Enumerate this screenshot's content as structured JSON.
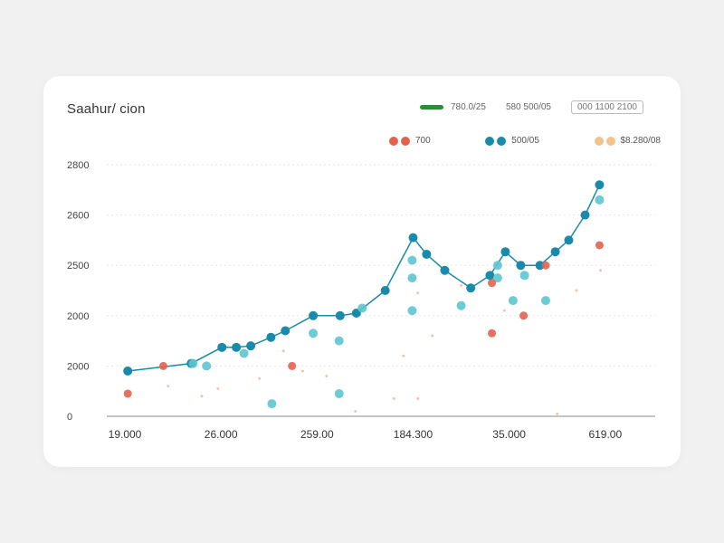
{
  "card": {
    "title": "Saahur/ cion",
    "top_legend": {
      "item1": "780.0/25",
      "item2": "580 500/05",
      "item3_box": "000 1100 2100"
    }
  },
  "colors": {
    "line": "#1a8aab",
    "teal": "#5cc5cf",
    "red": "#e3624f",
    "peach": "#f0c38e",
    "green": "#2f8a3a",
    "grid": "#e6e6e6",
    "axis": "#8a8a8a"
  },
  "chart_data": {
    "type": "scatter",
    "x_ticks": [
      {
        "value": 0,
        "label": "19.000"
      },
      {
        "value": 1,
        "label": "26.000"
      },
      {
        "value": 2,
        "label": "259.00"
      },
      {
        "value": 3,
        "label": "184.300"
      },
      {
        "value": 4,
        "label": "35.000"
      },
      {
        "value": 5,
        "label": "619.00"
      }
    ],
    "xlim": [
      0,
      5.52
    ],
    "y_ticks": [
      {
        "value": 0,
        "label": "0"
      },
      {
        "value": 1,
        "label": "2000"
      },
      {
        "value": 2,
        "label": "2000"
      },
      {
        "value": 3,
        "label": "2500"
      },
      {
        "value": 4,
        "label": "2600"
      },
      {
        "value": 5,
        "label": "2800"
      }
    ],
    "ylim": [
      0,
      5
    ],
    "grid": true,
    "legend_placement": "top-right",
    "series": [
      {
        "name": "780.0",
        "style": "line",
        "color_key": "line",
        "points": [
          [
            0.03,
            0.9
          ],
          [
            0.69,
            1.05
          ],
          [
            1.01,
            1.37
          ],
          [
            1.16,
            1.37
          ],
          [
            1.31,
            1.4
          ],
          [
            1.52,
            1.57
          ],
          [
            1.67,
            1.7
          ],
          [
            1.96,
            2.0
          ],
          [
            2.24,
            2.0
          ],
          [
            2.41,
            2.05
          ],
          [
            2.71,
            2.5
          ],
          [
            3.0,
            3.55
          ],
          [
            3.14,
            3.22
          ],
          [
            3.33,
            2.9
          ],
          [
            3.6,
            2.55
          ],
          [
            3.8,
            2.8
          ],
          [
            3.96,
            3.27
          ],
          [
            4.12,
            3.0
          ],
          [
            4.32,
            3.0
          ],
          [
            4.48,
            3.27
          ],
          [
            4.62,
            3.5
          ],
          [
            4.79,
            4.0
          ],
          [
            4.94,
            4.6
          ]
        ]
      },
      {
        "name": "500/05",
        "style": "points",
        "color_key": "teal",
        "points": [
          [
            0.71,
            1.05
          ],
          [
            0.85,
            1.0
          ],
          [
            1.24,
            1.25
          ],
          [
            1.53,
            0.25
          ],
          [
            1.96,
            1.65
          ],
          [
            2.23,
            0.45
          ],
          [
            2.23,
            1.5
          ],
          [
            2.47,
            2.15
          ],
          [
            2.99,
            2.1
          ],
          [
            2.99,
            2.75
          ],
          [
            2.99,
            3.1
          ],
          [
            3.5,
            2.2
          ],
          [
            3.88,
            2.75
          ],
          [
            3.88,
            3.0
          ],
          [
            4.04,
            2.3
          ],
          [
            4.16,
            2.8
          ],
          [
            4.38,
            2.3
          ],
          [
            4.94,
            4.3
          ]
        ]
      },
      {
        "name": "700",
        "style": "points",
        "color_key": "red",
        "points": [
          [
            0.03,
            0.45
          ],
          [
            0.4,
            1.0
          ],
          [
            1.74,
            1.0
          ],
          [
            3.82,
            1.65
          ],
          [
            3.82,
            2.65
          ],
          [
            4.15,
            2.0
          ],
          [
            4.38,
            3.0
          ],
          [
            4.94,
            3.4
          ]
        ]
      }
    ],
    "legend": [
      {
        "label": "700",
        "color_key": "red"
      },
      {
        "label": "500/05",
        "color_key": "teal"
      },
      {
        "label": "$8.280/08",
        "color_key": "peach"
      }
    ]
  }
}
